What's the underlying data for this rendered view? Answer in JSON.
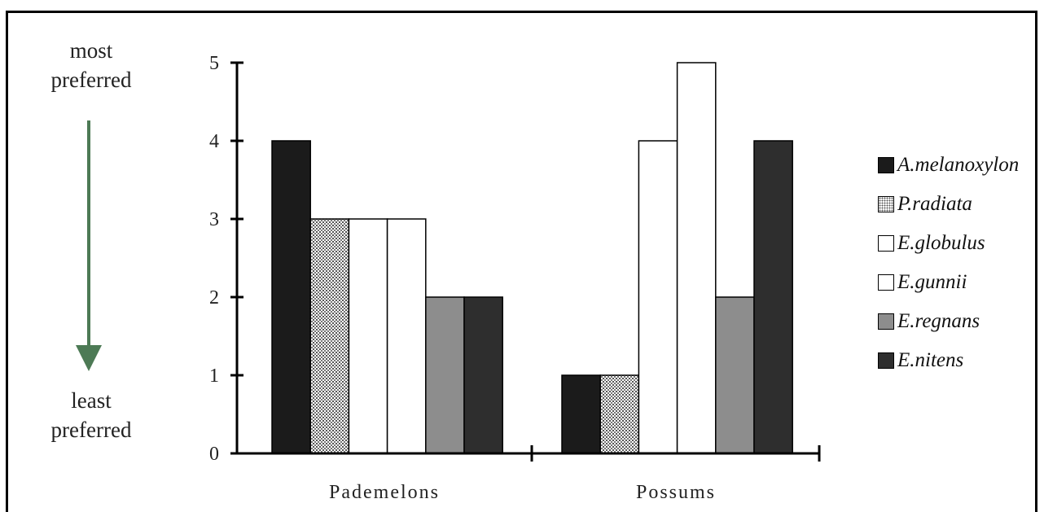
{
  "left_scale": {
    "top_line1": "most",
    "top_line2": "preferred",
    "bottom_line1": "least",
    "bottom_line2": "preferred",
    "arrow_color": "#4d7a55"
  },
  "chart_data": {
    "type": "bar",
    "categories": [
      "Pademelons",
      "Possums"
    ],
    "ylim": [
      0,
      5
    ],
    "yticks": [
      "0",
      "1",
      "2",
      "3",
      "4",
      "5"
    ],
    "grid": false,
    "legend_position": "right",
    "series": [
      {
        "name": "A.melanoxylon",
        "values": [
          4,
          1
        ],
        "fill": "#1b1b1b"
      },
      {
        "name": "P.radiata",
        "values": [
          3,
          1
        ],
        "fill": "dots"
      },
      {
        "name": "E.globulus",
        "values": [
          3,
          4
        ],
        "fill": "#ffffff"
      },
      {
        "name": "E.gunnii",
        "values": [
          3,
          5
        ],
        "fill": "#ffffff"
      },
      {
        "name": "E.regnans",
        "values": [
          2,
          2
        ],
        "fill": "#8d8d8d"
      },
      {
        "name": "E.nitens",
        "values": [
          2,
          4
        ],
        "fill": "#2e2e2e"
      }
    ]
  }
}
